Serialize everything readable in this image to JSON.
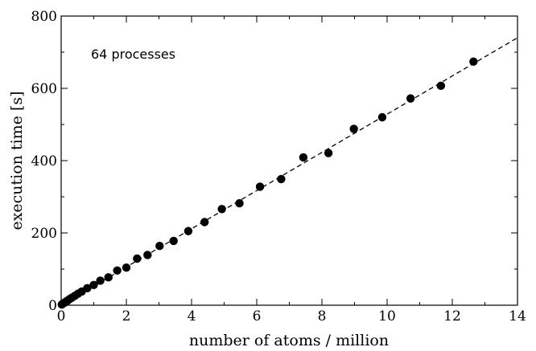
{
  "chart_data": {
    "type": "scatter",
    "xlabel": "number of atoms / million",
    "ylabel": "execution time [s]",
    "annotation": "64 processes",
    "xlim": [
      0,
      14
    ],
    "ylim": [
      0,
      800
    ],
    "x_ticks": [
      0,
      2,
      4,
      6,
      8,
      10,
      12,
      14
    ],
    "y_ticks": [
      0,
      200,
      400,
      600,
      800
    ],
    "grid": false,
    "legend": "none",
    "colors": {
      "marker": "#000000",
      "fit_line": "#000000"
    },
    "series": [
      {
        "points": [
          [
            0.02,
            2
          ],
          [
            0.05,
            4
          ],
          [
            0.1,
            7
          ],
          [
            0.15,
            10
          ],
          [
            0.2,
            13
          ],
          [
            0.26,
            17
          ],
          [
            0.33,
            21
          ],
          [
            0.42,
            26
          ],
          [
            0.52,
            32
          ],
          [
            0.63,
            38
          ],
          [
            0.8,
            47
          ],
          [
            1.0,
            56
          ],
          [
            1.2,
            68
          ],
          [
            1.45,
            77
          ],
          [
            1.72,
            96
          ],
          [
            2.0,
            104
          ],
          [
            2.33,
            129
          ],
          [
            2.65,
            139
          ],
          [
            3.02,
            164
          ],
          [
            3.45,
            178
          ],
          [
            3.9,
            205
          ],
          [
            4.4,
            230
          ],
          [
            4.93,
            266
          ],
          [
            5.47,
            282
          ],
          [
            6.1,
            328
          ],
          [
            6.75,
            349
          ],
          [
            7.43,
            409
          ],
          [
            8.2,
            421
          ],
          [
            8.98,
            488
          ],
          [
            9.85,
            520
          ],
          [
            10.72,
            572
          ],
          [
            11.65,
            607
          ],
          [
            12.65,
            674
          ]
        ]
      }
    ],
    "fit_line": {
      "style": "dashed",
      "from": [
        0,
        0
      ],
      "to": [
        14,
        740
      ]
    }
  }
}
